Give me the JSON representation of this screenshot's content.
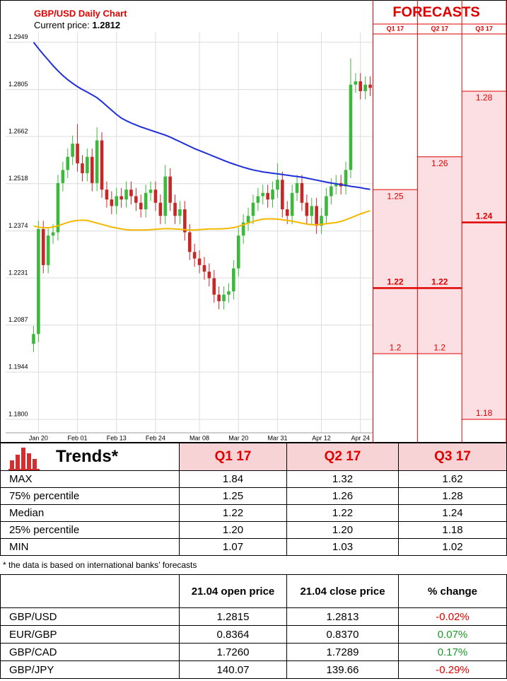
{
  "chart_data": [
    {
      "type": "candlestick",
      "title": "GBP/USD Daily Chart",
      "subtitle": "Current price:",
      "current_price": 1.2812,
      "categories": [
        null,
        "Jan 20",
        null,
        null,
        null,
        null,
        null,
        null,
        null,
        "Feb 01",
        null,
        null,
        null,
        null,
        null,
        null,
        null,
        "Feb 13",
        null,
        null,
        null,
        null,
        null,
        null,
        null,
        "Feb 24",
        null,
        null,
        null,
        null,
        null,
        null,
        null,
        null,
        "Mar 08",
        null,
        null,
        null,
        null,
        null,
        null,
        null,
        "Mar 20",
        null,
        null,
        null,
        null,
        null,
        null,
        null,
        "Mar 31",
        null,
        null,
        null,
        null,
        null,
        null,
        null,
        null,
        "Apr 12",
        null,
        null,
        null,
        null,
        null,
        null,
        null,
        "Apr 24",
        null,
        null
      ],
      "open": [
        1.203,
        1.206,
        1.238,
        1.227,
        1.236,
        1.237,
        1.252,
        1.256,
        1.26,
        1.264,
        1.258,
        1.255,
        1.26,
        1.252,
        1.265,
        1.25,
        1.247,
        1.245,
        1.248,
        1.247,
        1.25,
        1.248,
        1.246,
        1.244,
        1.249,
        1.25,
        1.246,
        1.242,
        1.254,
        1.246,
        1.242,
        1.244,
        1.237,
        1.231,
        1.229,
        1.227,
        1.225,
        1.223,
        1.218,
        1.216,
        1.218,
        1.219,
        1.226,
        1.236,
        1.24,
        1.242,
        1.246,
        1.248,
        1.249,
        1.247,
        1.25,
        1.253,
        1.244,
        1.242,
        1.249,
        1.252,
        1.246,
        1.242,
        1.245,
        1.239,
        1.242,
        1.248,
        1.251,
        1.252,
        1.251,
        1.256,
        1.282,
        1.283,
        1.28,
        1.282
      ],
      "high": [
        1.2085,
        1.2405,
        1.2405,
        1.2385,
        1.2395,
        1.2545,
        1.2585,
        1.2625,
        1.2665,
        1.27,
        1.2605,
        1.2625,
        1.2625,
        1.269,
        1.2675,
        1.2525,
        1.2495,
        1.2505,
        1.2505,
        1.2525,
        1.2525,
        1.2505,
        1.2485,
        1.2515,
        1.2525,
        1.2525,
        1.2485,
        1.2575,
        1.2565,
        1.2485,
        1.2465,
        1.2465,
        1.2395,
        1.2335,
        1.2315,
        1.2295,
        1.2275,
        1.2255,
        1.2205,
        1.2205,
        1.2215,
        1.2285,
        1.2385,
        1.2425,
        1.2445,
        1.2485,
        1.2505,
        1.2515,
        1.2515,
        1.2525,
        1.258,
        1.2555,
        1.2465,
        1.2515,
        1.2545,
        1.2545,
        1.2485,
        1.2475,
        1.2475,
        1.2445,
        1.2505,
        1.2535,
        1.2545,
        1.2545,
        1.2585,
        1.29,
        1.2855,
        1.2855,
        1.2845,
        1.2845
      ],
      "low": [
        1.2005,
        1.2035,
        1.2245,
        1.2245,
        1.2335,
        1.2345,
        1.2495,
        1.2535,
        1.2575,
        1.2555,
        1.2525,
        1.2525,
        1.2495,
        1.2495,
        1.2475,
        1.2445,
        1.2425,
        1.2425,
        1.2445,
        1.2445,
        1.2455,
        1.2435,
        1.2415,
        1.2415,
        1.2465,
        1.2435,
        1.2395,
        1.2395,
        1.2435,
        1.2395,
        1.2395,
        1.2345,
        1.2285,
        1.2265,
        1.2245,
        1.2225,
        1.2205,
        1.2155,
        1.2135,
        1.2135,
        1.2155,
        1.2165,
        1.2235,
        1.2335,
        1.2375,
        1.2395,
        1.2435,
        1.2455,
        1.2445,
        1.2445,
        1.2475,
        1.2415,
        1.2395,
        1.2395,
        1.2465,
        1.2435,
        1.2395,
        1.2395,
        1.2365,
        1.2365,
        1.2395,
        1.2455,
        1.2485,
        1.2485,
        1.2485,
        1.2535,
        1.2795,
        1.2775,
        1.2775,
        1.2785
      ],
      "close": [
        1.206,
        1.238,
        1.227,
        1.236,
        1.237,
        1.252,
        1.256,
        1.26,
        1.264,
        1.258,
        1.255,
        1.26,
        1.252,
        1.265,
        1.25,
        1.247,
        1.245,
        1.248,
        1.247,
        1.25,
        1.248,
        1.246,
        1.244,
        1.249,
        1.25,
        1.246,
        1.242,
        1.254,
        1.246,
        1.242,
        1.244,
        1.237,
        1.231,
        1.229,
        1.227,
        1.225,
        1.223,
        1.218,
        1.216,
        1.218,
        1.219,
        1.226,
        1.236,
        1.24,
        1.242,
        1.246,
        1.248,
        1.249,
        1.247,
        1.25,
        1.253,
        1.244,
        1.242,
        1.249,
        1.252,
        1.246,
        1.242,
        1.245,
        1.239,
        1.242,
        1.248,
        1.251,
        1.252,
        1.251,
        1.256,
        1.282,
        1.283,
        1.28,
        1.282,
        1.281
      ],
      "up_color": "#3cb93c",
      "down_color": "#c62828",
      "series": [
        {
          "color": "#2030d8",
          "values": [
            1.2949,
            1.293,
            1.2912,
            1.2895,
            1.2878,
            1.2862,
            1.2848,
            1.2835,
            1.2824,
            1.2814,
            1.2805,
            1.2797,
            1.2789,
            1.278,
            1.2768,
            1.2755,
            1.2742,
            1.2729,
            1.2718,
            1.271,
            1.2703,
            1.2697,
            1.2691,
            1.2686,
            1.2681,
            1.2676,
            1.2671,
            1.2666,
            1.266,
            1.2653,
            1.2646,
            1.2639,
            1.2632,
            1.2625,
            1.2619,
            1.2613,
            1.2607,
            1.2601,
            1.2595,
            1.2589,
            1.2583,
            1.2578,
            1.2573,
            1.2568,
            1.2564,
            1.256,
            1.2557,
            1.2554,
            1.2552,
            1.255,
            1.2548,
            1.2546,
            1.2544,
            1.2542,
            1.254,
            1.2538,
            1.2535,
            1.2532,
            1.2529,
            1.2526,
            1.2523,
            1.252,
            1.2518,
            1.2515,
            1.2513,
            1.251,
            1.2508,
            1.2506,
            1.2503,
            1.2501
          ]
        },
        {
          "color": "#f5b800",
          "values": [
            1.2389,
            1.2386,
            1.2384,
            1.2384,
            1.2386,
            1.239,
            1.2395,
            1.24,
            1.2404,
            1.2406,
            1.2407,
            1.2406,
            1.2402,
            1.2398,
            1.2394,
            1.239,
            1.2386,
            1.2383,
            1.238,
            1.2378,
            1.2377,
            1.2377,
            1.2377,
            1.2377,
            1.2378,
            1.2379,
            1.238,
            1.2381,
            1.2381,
            1.238,
            1.2379,
            1.2378,
            1.2377,
            1.2377,
            1.2378,
            1.2379,
            1.238,
            1.238,
            1.238,
            1.2381,
            1.2382,
            1.2384,
            1.2388,
            1.2393,
            1.2398,
            1.2403,
            1.2407,
            1.241,
            1.2411,
            1.2411,
            1.241,
            1.2408,
            1.2406,
            1.2404,
            1.2401,
            1.2398,
            1.2395,
            1.2393,
            1.2393,
            1.2394,
            1.2396,
            1.2398,
            1.24,
            1.2403,
            1.2408,
            1.2414,
            1.242,
            1.2426,
            1.2431,
            1.2436
          ]
        }
      ],
      "ylim": [
        1.1759,
        1.2996
      ],
      "yticks": [
        {
          "value": 1.18,
          "label": "1.1800"
        },
        1.1944,
        1.2087,
        1.2231,
        1.2374,
        1.2518,
        1.2662,
        1.2805,
        1.2949
      ],
      "grid": true
    },
    {
      "type": "forecast_range",
      "title": "FORECASTS",
      "categories": [
        "Q1 17",
        "Q2 17",
        "Q3 17"
      ],
      "q75": [
        1.25,
        1.26,
        1.28
      ],
      "median": [
        1.22,
        1.22,
        1.24
      ],
      "q25": [
        1.2,
        1.2,
        1.18
      ],
      "color": "#e00000",
      "fill": "#fbdfe2",
      "ylim": [
        1.1759,
        1.2996
      ]
    }
  ],
  "trends": {
    "title": "Trends*",
    "columns": [
      "Q1 17",
      "Q2 17",
      "Q3 17"
    ],
    "rows": [
      [
        "MAX",
        "1.84",
        "1.32",
        "1.62"
      ],
      [
        "75% percentile",
        "1.25",
        "1.26",
        "1.28"
      ],
      [
        "Median",
        "1.22",
        "1.22",
        "1.24"
      ],
      [
        "25% percentile",
        "1.20",
        "1.20",
        "1.18"
      ],
      [
        "MIN",
        "1.07",
        "1.03",
        "1.02"
      ]
    ]
  },
  "footnote": "* the data is based on international banks’ forecasts",
  "prices": {
    "columns": [
      "21.04 open price",
      "21.04 close price",
      "% change"
    ],
    "rows": [
      [
        "GBP/USD",
        "1.2815",
        "1.2813",
        "-0.02%"
      ],
      [
        "EUR/GBP",
        "0.8364",
        "0.8370",
        "0.07%"
      ],
      [
        "GBP/CAD",
        "1.7260",
        "1.7289",
        "0.17%"
      ],
      [
        "GBP/JPY",
        "140.07",
        "139.66",
        "-0.29%"
      ]
    ],
    "change_colors": [
      "#e00000",
      "#1a9a2a",
      "#1a9a2a",
      "#e00000"
    ]
  }
}
